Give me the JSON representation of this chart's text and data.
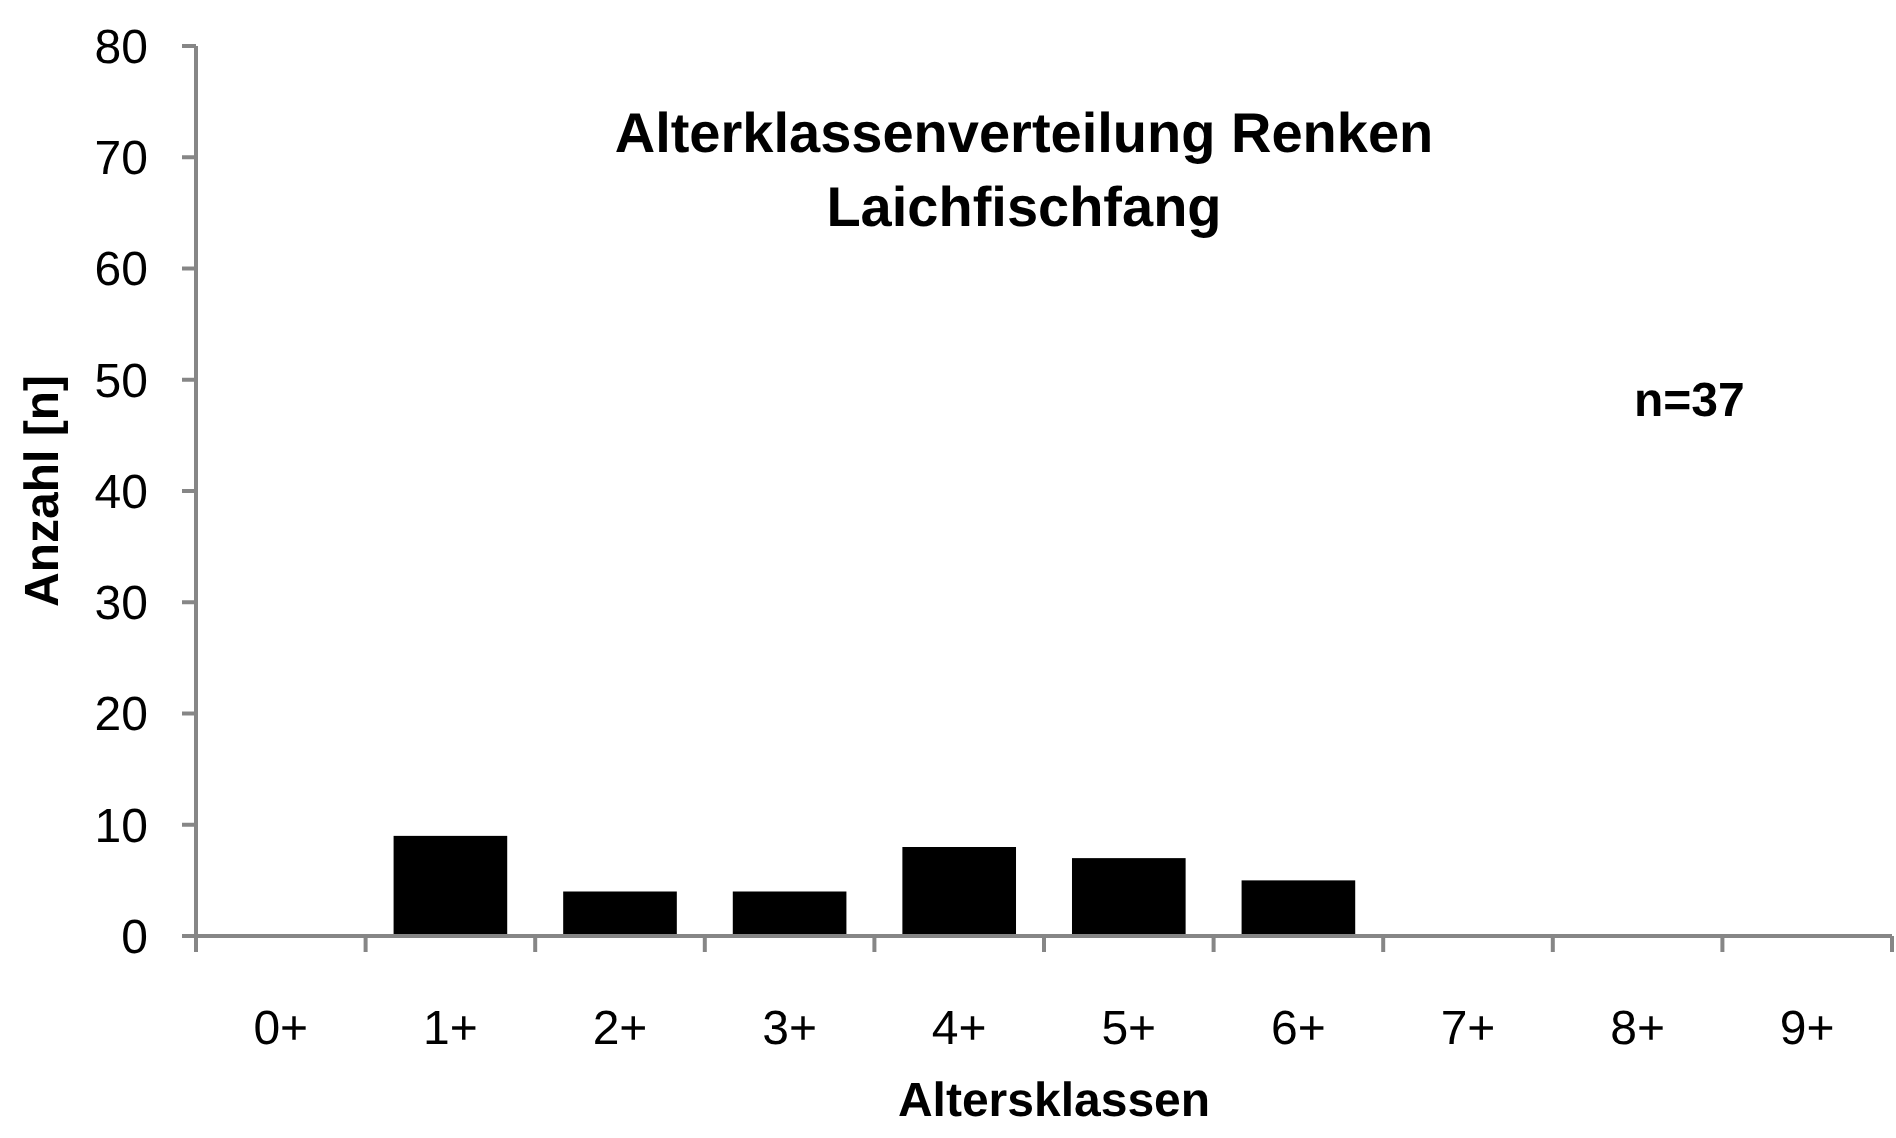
{
  "chart_data": {
    "type": "bar",
    "title": "Alterklassenverteilung Renken\nLaichfischfang",
    "xlabel": "Altersklassen",
    "ylabel": "Anzahl [n]",
    "categories": [
      "0+",
      "1+",
      "2+",
      "3+",
      "4+",
      "5+",
      "6+",
      "7+",
      "8+",
      "9+"
    ],
    "values": [
      0,
      9,
      4,
      4,
      8,
      7,
      5,
      0,
      0,
      0
    ],
    "color": "#000000",
    "ylim": [
      0,
      80
    ],
    "yticks": [
      0,
      10,
      20,
      30,
      40,
      50,
      60,
      70,
      80
    ],
    "annotations": [
      "n=37"
    ]
  }
}
